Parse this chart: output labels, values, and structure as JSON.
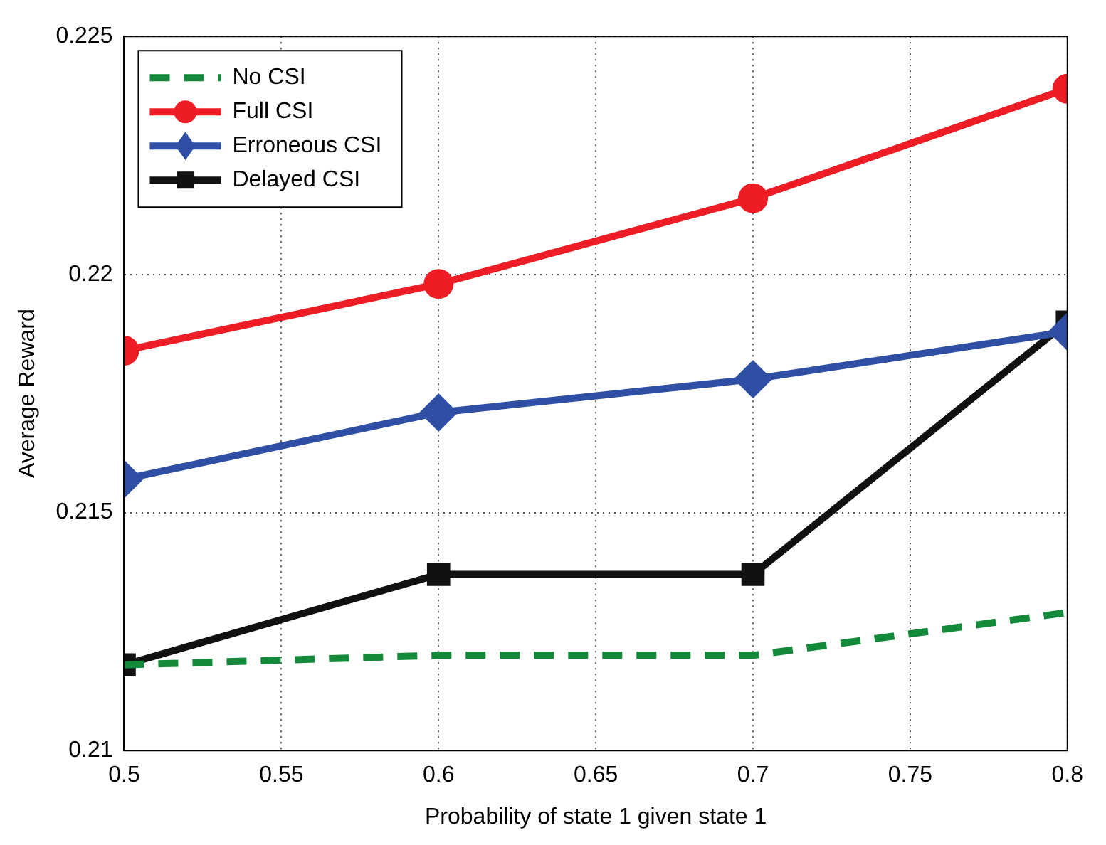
{
  "chart_data": {
    "type": "line",
    "xlabel": "Probability of state 1 given state 1",
    "ylabel": "Average Reward",
    "x": [
      0.5,
      0.6,
      0.7,
      0.8
    ],
    "series": [
      {
        "name": "No CSI",
        "color": "#138a3a",
        "values": [
          0.2118,
          0.212,
          0.212,
          0.2129
        ],
        "marker": "none",
        "line_style": "dashed"
      },
      {
        "name": "Full CSI",
        "color": "#ee1c24",
        "values": [
          0.2184,
          0.2198,
          0.2216,
          0.2239
        ],
        "marker": "circle",
        "line_style": "solid"
      },
      {
        "name": "Erroneous CSI",
        "color": "#2e4fa3",
        "values": [
          0.2157,
          0.2171,
          0.2178,
          0.2188
        ],
        "marker": "diamond",
        "line_style": "solid"
      },
      {
        "name": "Delayed CSI",
        "color": "#111111",
        "values": [
          0.2118,
          0.2137,
          0.2137,
          0.219
        ],
        "marker": "square",
        "line_style": "solid"
      }
    ],
    "xlim": [
      0.5,
      0.8
    ],
    "xticks": [
      0.5,
      0.55,
      0.6,
      0.65,
      0.7,
      0.75,
      0.8
    ],
    "ylim": [
      0.21,
      0.225
    ],
    "yticks": [
      0.21,
      0.215,
      0.22,
      0.225
    ],
    "grid": true,
    "legend": "top left"
  }
}
